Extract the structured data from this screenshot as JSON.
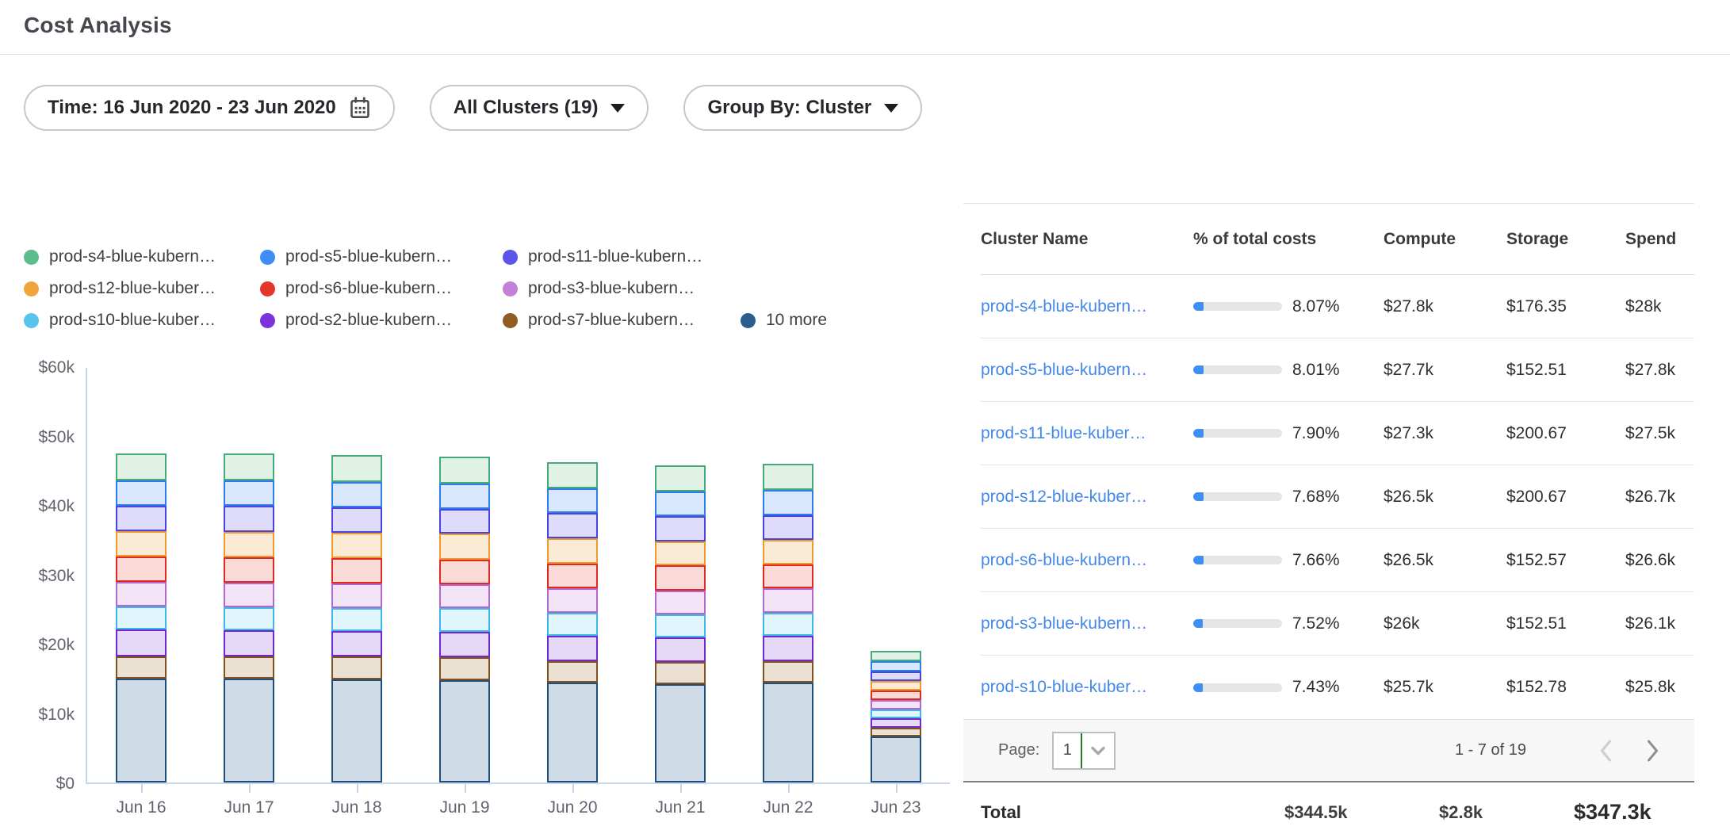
{
  "page_title": "Cost Analysis",
  "filters": {
    "time_label": "Time: 16 Jun 2020 - 23 Jun 2020",
    "clusters_label": "All Clusters (19)",
    "group_by_label": "Group By: Cluster"
  },
  "chart_data": {
    "type": "bar",
    "stacked": true,
    "x": [
      "Jun 16",
      "Jun 17",
      "Jun 18",
      "Jun 19",
      "Jun 20",
      "Jun 21",
      "Jun 22",
      "Jun 23"
    ],
    "y_ticks": [
      "$60k",
      "$50k",
      "$40k",
      "$30k",
      "$20k",
      "$10k",
      "$0"
    ],
    "ylabel": "",
    "xlabel": "",
    "ylim_k": [
      0,
      60
    ],
    "unit": "$k (daily spend)",
    "legend_rows": [
      [
        0,
        1,
        2
      ],
      [
        3,
        4,
        5
      ],
      [
        6,
        7,
        8,
        9
      ]
    ],
    "series": [
      {
        "name": "prod-s4-blue-kubern…",
        "dot": "#5CBD8D",
        "stroke": "#47A879",
        "fill": "#E0F1E6",
        "values_k": [
          3.9,
          3.9,
          3.9,
          3.9,
          3.8,
          3.8,
          3.8,
          1.5
        ]
      },
      {
        "name": "prod-s5-blue-kubern…",
        "dot": "#3E8EF7",
        "stroke": "#2D7DE8",
        "fill": "#D9E7FC",
        "values_k": [
          3.7,
          3.7,
          3.7,
          3.7,
          3.6,
          3.6,
          3.6,
          1.4
        ]
      },
      {
        "name": "prod-s11-blue-kubern…",
        "dot": "#5B55EA",
        "stroke": "#4A43E2",
        "fill": "#DEDCFA",
        "values_k": [
          3.6,
          3.7,
          3.6,
          3.6,
          3.7,
          3.6,
          3.6,
          1.4
        ]
      },
      {
        "name": "prod-s12-blue-kuber…",
        "dot": "#F2A43C",
        "stroke": "#EC9A2F",
        "fill": "#FBEBD4",
        "values_k": [
          3.7,
          3.7,
          3.7,
          3.7,
          3.6,
          3.5,
          3.5,
          1.4
        ]
      },
      {
        "name": "prod-s6-blue-kubern…",
        "dot": "#E5362B",
        "stroke": "#E02A1F",
        "fill": "#FADAD7",
        "values_k": [
          3.7,
          3.7,
          3.7,
          3.6,
          3.6,
          3.6,
          3.5,
          1.4
        ]
      },
      {
        "name": "prod-s3-blue-kubern…",
        "dot": "#C47FD9",
        "stroke": "#B266CE",
        "fill": "#F3E3F7",
        "values_k": [
          3.5,
          3.5,
          3.5,
          3.5,
          3.5,
          3.5,
          3.5,
          1.3
        ]
      },
      {
        "name": "prod-s10-blue-kuber…",
        "dot": "#58C4EC",
        "stroke": "#3FB7E4",
        "fill": "#E0F6FC",
        "values_k": [
          3.4,
          3.4,
          3.4,
          3.4,
          3.4,
          3.3,
          3.4,
          1.3
        ]
      },
      {
        "name": "prod-s2-blue-kubern…",
        "dot": "#7B33DB",
        "stroke": "#6E28CE",
        "fill": "#E6D9F8",
        "values_k": [
          3.8,
          3.7,
          3.7,
          3.7,
          3.6,
          3.6,
          3.6,
          1.4
        ]
      },
      {
        "name": "prod-s7-blue-kubern…",
        "dot": "#8F5C22",
        "stroke": "#82511C",
        "fill": "#EAE1D2",
        "values_k": [
          3.3,
          3.3,
          3.3,
          3.3,
          3.2,
          3.2,
          3.2,
          1.2
        ]
      },
      {
        "name": "10 more",
        "dot": "#2A5E8C",
        "stroke": "#1F4E7C",
        "fill": "#CFDBE6",
        "values_k": [
          15.0,
          15.0,
          14.9,
          14.8,
          14.4,
          14.2,
          14.4,
          6.7
        ]
      }
    ]
  },
  "table": {
    "columns": [
      "Cluster Name",
      "% of total costs",
      "Compute",
      "Storage",
      "Spend"
    ],
    "rows": [
      {
        "name": "prod-s4-blue-kubern…",
        "pct": "8.07%",
        "pct_value": 8.07,
        "compute": "$27.8k",
        "storage": "$176.35",
        "spend": "$28k"
      },
      {
        "name": "prod-s5-blue-kubern…",
        "pct": "8.01%",
        "pct_value": 8.01,
        "compute": "$27.7k",
        "storage": "$152.51",
        "spend": "$27.8k"
      },
      {
        "name": "prod-s11-blue-kuber…",
        "pct": "7.90%",
        "pct_value": 7.9,
        "compute": "$27.3k",
        "storage": "$200.67",
        "spend": "$27.5k"
      },
      {
        "name": "prod-s12-blue-kuber…",
        "pct": "7.68%",
        "pct_value": 7.68,
        "compute": "$26.5k",
        "storage": "$200.67",
        "spend": "$26.7k"
      },
      {
        "name": "prod-s6-blue-kubern…",
        "pct": "7.66%",
        "pct_value": 7.66,
        "compute": "$26.5k",
        "storage": "$152.57",
        "spend": "$26.6k"
      },
      {
        "name": "prod-s3-blue-kubern…",
        "pct": "7.52%",
        "pct_value": 7.52,
        "compute": "$26k",
        "storage": "$152.51",
        "spend": "$26.1k"
      },
      {
        "name": "prod-s10-blue-kuber…",
        "pct": "7.43%",
        "pct_value": 7.43,
        "compute": "$25.7k",
        "storage": "$152.78",
        "spend": "$25.8k"
      }
    ],
    "pagination": {
      "label": "Page:",
      "page": "1",
      "range": "1 - 7 of 19"
    },
    "total": {
      "label": "Total",
      "compute": "$344.5k",
      "storage": "$2.8k",
      "spend": "$347.3k"
    }
  },
  "colors": {
    "link": "#4188E8",
    "progress_fill": "#3E8EF7",
    "progress_track": "#E5E5E5",
    "axis_line": "#C9D5EC"
  }
}
